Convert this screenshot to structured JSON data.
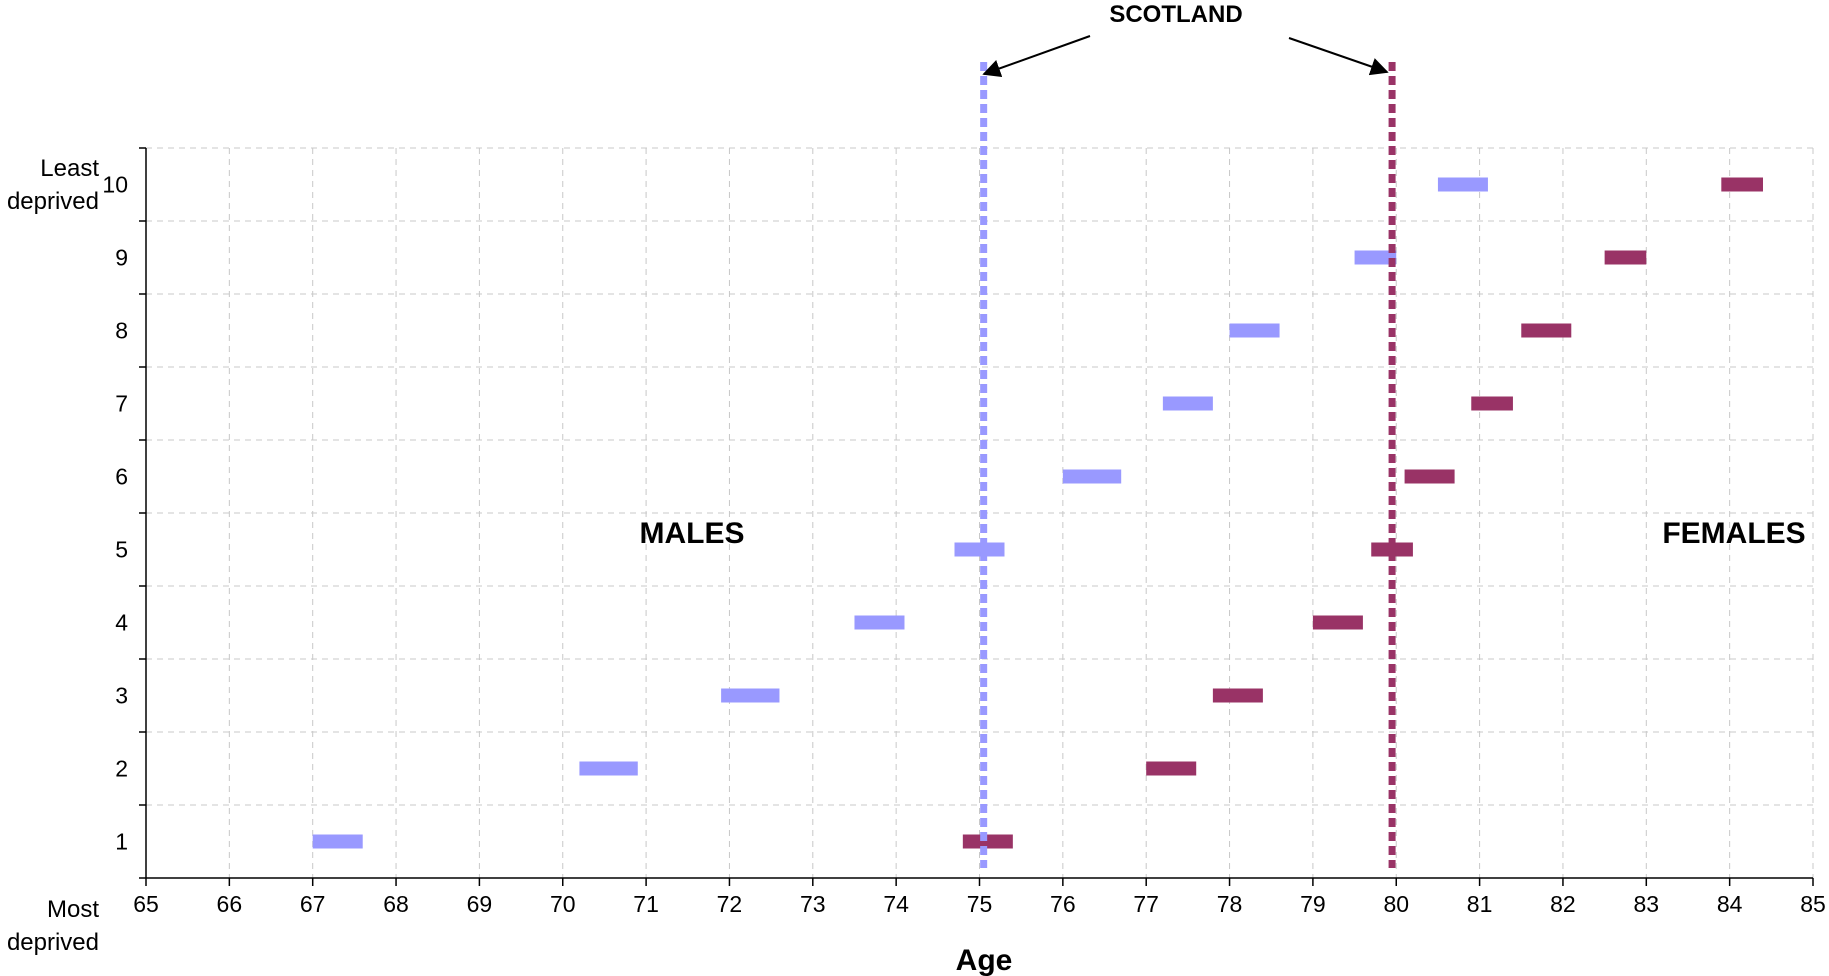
{
  "chart_data": {
    "type": "interval",
    "title": "",
    "xlabel": "Age",
    "ylabel": "",
    "xlim": [
      65,
      85
    ],
    "ylim": [
      0.5,
      10.5
    ],
    "x_ticks": [
      "65",
      "66",
      "67",
      "68",
      "69",
      "70",
      "71",
      "72",
      "73",
      "74",
      "75",
      "76",
      "77",
      "78",
      "79",
      "80",
      "81",
      "82",
      "83",
      "84",
      "85"
    ],
    "y_ticks": [
      "1",
      "2",
      "3",
      "4",
      "5",
      "6",
      "7",
      "8",
      "9",
      "10"
    ],
    "y_end_labels": {
      "top": [
        "Least",
        "deprived"
      ],
      "bottom": [
        "Most",
        "deprived"
      ]
    },
    "grid": true,
    "series": [
      {
        "name": "MALES",
        "color": "#9999ff",
        "intervals": [
          {
            "decile": 1,
            "low": 67.0,
            "high": 67.6
          },
          {
            "decile": 2,
            "low": 70.2,
            "high": 70.9
          },
          {
            "decile": 3,
            "low": 71.9,
            "high": 72.6
          },
          {
            "decile": 4,
            "low": 73.5,
            "high": 74.1
          },
          {
            "decile": 5,
            "low": 74.7,
            "high": 75.3
          },
          {
            "decile": 6,
            "low": 76.0,
            "high": 76.7
          },
          {
            "decile": 7,
            "low": 77.2,
            "high": 77.8
          },
          {
            "decile": 8,
            "low": 78.0,
            "high": 78.6
          },
          {
            "decile": 9,
            "low": 79.5,
            "high": 80.0
          },
          {
            "decile": 10,
            "low": 80.5,
            "high": 81.1
          }
        ],
        "scotland_value": 75.05
      },
      {
        "name": "FEMALES",
        "color": "#993366",
        "intervals": [
          {
            "decile": 1,
            "low": 74.8,
            "high": 75.4
          },
          {
            "decile": 2,
            "low": 77.0,
            "high": 77.6
          },
          {
            "decile": 3,
            "low": 77.8,
            "high": 78.4
          },
          {
            "decile": 4,
            "low": 79.0,
            "high": 79.6
          },
          {
            "decile": 5,
            "low": 79.7,
            "high": 80.2
          },
          {
            "decile": 6,
            "low": 80.1,
            "high": 80.7
          },
          {
            "decile": 7,
            "low": 80.9,
            "high": 81.4
          },
          {
            "decile": 8,
            "low": 81.5,
            "high": 82.1
          },
          {
            "decile": 9,
            "low": 82.5,
            "high": 83.0
          },
          {
            "decile": 10,
            "low": 83.9,
            "high": 84.4
          }
        ],
        "scotland_value": 79.95
      }
    ],
    "reference_label": "SCOTLAND"
  }
}
